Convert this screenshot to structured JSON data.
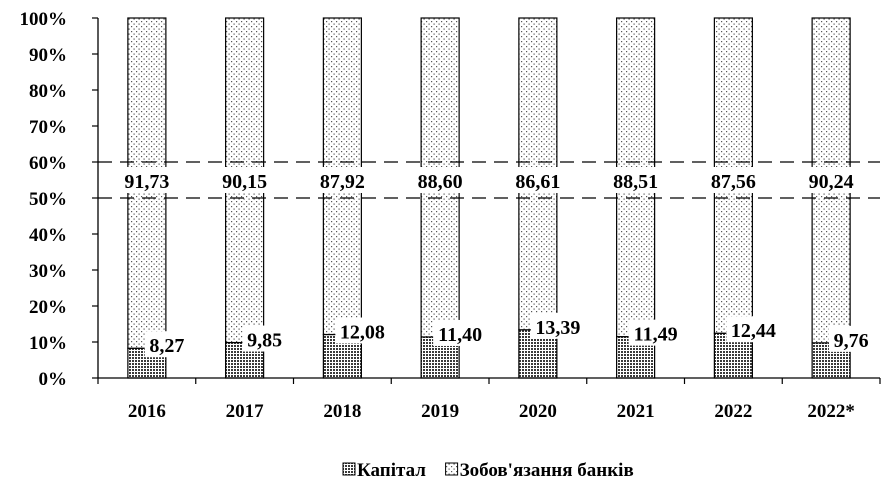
{
  "chart_data": {
    "type": "bar",
    "stacked": true,
    "percent": true,
    "categories": [
      "2016",
      "2017",
      "2018",
      "2019",
      "2020",
      "2021",
      "2022",
      "2022*"
    ],
    "series": [
      {
        "name": "Капітал",
        "values": [
          8.27,
          9.85,
          12.08,
          11.4,
          13.39,
          11.49,
          12.44,
          9.76
        ],
        "labels": [
          "8,27",
          "9,85",
          "12,08",
          "11,40",
          "13,39",
          "11,49",
          "12,44",
          "9,76"
        ],
        "pattern": "dense-dots"
      },
      {
        "name": "Зобов'язання банків",
        "values": [
          91.73,
          90.15,
          87.92,
          88.6,
          86.61,
          88.51,
          87.56,
          90.24
        ],
        "labels": [
          "91,73",
          "90,15",
          "87,92",
          "88,60",
          "86,61",
          "88,51",
          "87,56",
          "90,24"
        ],
        "pattern": "sparse-dots"
      }
    ],
    "y_ticks": [
      "0%",
      "10%",
      "20%",
      "30%",
      "40%",
      "50%",
      "60%",
      "70%",
      "80%",
      "90%",
      "100%"
    ],
    "ylim": [
      0,
      100
    ],
    "grid": false,
    "dashed_reference_lines": [
      50,
      60
    ],
    "legend": "bottom-center"
  }
}
